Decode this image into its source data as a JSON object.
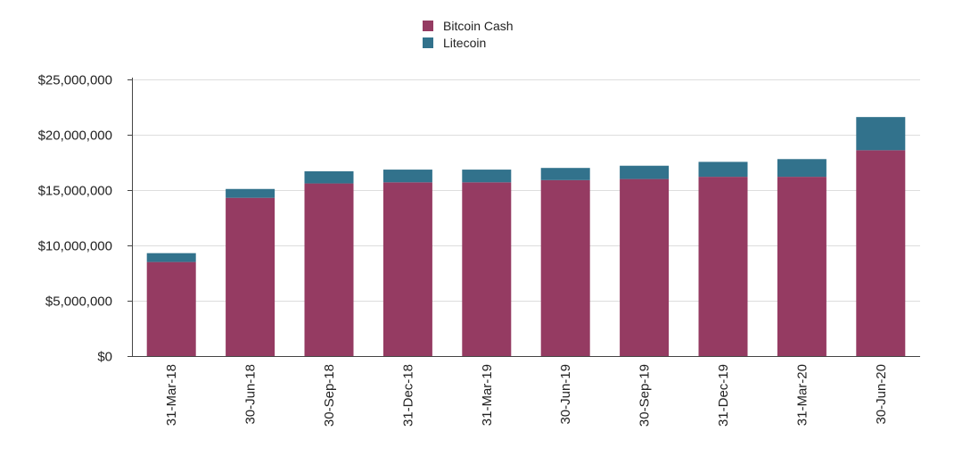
{
  "chart_data": {
    "type": "bar",
    "stacked": true,
    "categories": [
      "31-Mar-18",
      "30-Jun-18",
      "30-Sep-18",
      "31-Dec-18",
      "31-Mar-19",
      "30-Jun-19",
      "30-Sep-19",
      "31-Dec-19",
      "31-Mar-20",
      "30-Jun-20"
    ],
    "series": [
      {
        "name": "Bitcoin Cash",
        "color": "#953b62",
        "values": [
          8500000,
          14300000,
          15600000,
          15700000,
          15700000,
          15900000,
          16000000,
          16200000,
          16200000,
          18600000
        ]
      },
      {
        "name": "Litecoin",
        "color": "#32728c",
        "values": [
          800000,
          800000,
          1100000,
          1150000,
          1150000,
          1100000,
          1200000,
          1350000,
          1600000,
          3000000
        ]
      }
    ],
    "ylim": [
      0,
      25000000
    ],
    "yticks": [
      0,
      5000000,
      10000000,
      15000000,
      20000000,
      25000000
    ],
    "ytick_labels": [
      "$0",
      "$5,000,000",
      "$10,000,000",
      "$15,000,000",
      "$20,000,000",
      "$25,000,000"
    ],
    "title": "",
    "xlabel": "",
    "ylabel": "",
    "legend_position": "top-center",
    "grid": true
  }
}
